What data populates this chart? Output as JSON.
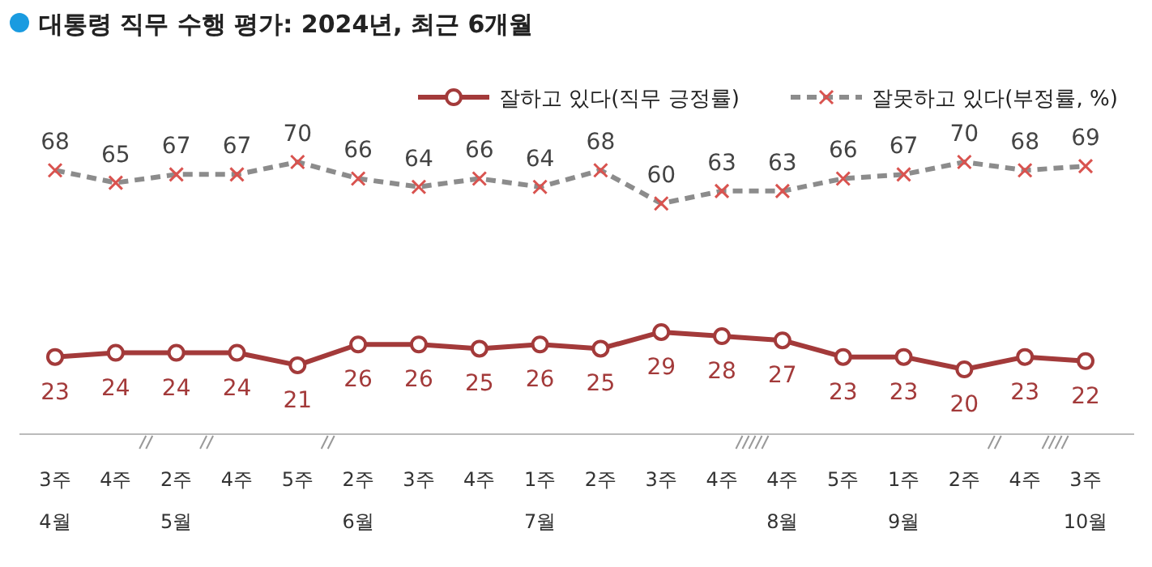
{
  "chart_data": {
    "type": "line",
    "title": "대통령 직무 수행 평가: 2024년, 최근 6개월",
    "categories": [
      "3주\n4월",
      "4주",
      "2주\n5월",
      "4주",
      "5주",
      "2주\n6월",
      "3주",
      "4주",
      "1주\n7월",
      "2주",
      "3주",
      "4주",
      "4주\n8월",
      "5주",
      "1주\n9월",
      "2주",
      "4주",
      "3주\n10월"
    ],
    "series": [
      {
        "name": "잘하고 있다(직무 긍정률)",
        "color": "#a33a3a",
        "marker": "circle",
        "line_style": "solid",
        "values": [
          23,
          24,
          24,
          24,
          21,
          26,
          26,
          25,
          26,
          25,
          29,
          28,
          27,
          23,
          23,
          20,
          23,
          22
        ]
      },
      {
        "name": "잘못하고 있다(부정률, %)",
        "color": "#8c8c8c",
        "marker": "cross",
        "line_style": "dashed",
        "values": [
          68,
          65,
          67,
          67,
          70,
          66,
          64,
          66,
          64,
          68,
          60,
          63,
          63,
          66,
          67,
          70,
          68,
          69
        ]
      }
    ],
    "data_labels": true,
    "legend": "top right"
  }
}
